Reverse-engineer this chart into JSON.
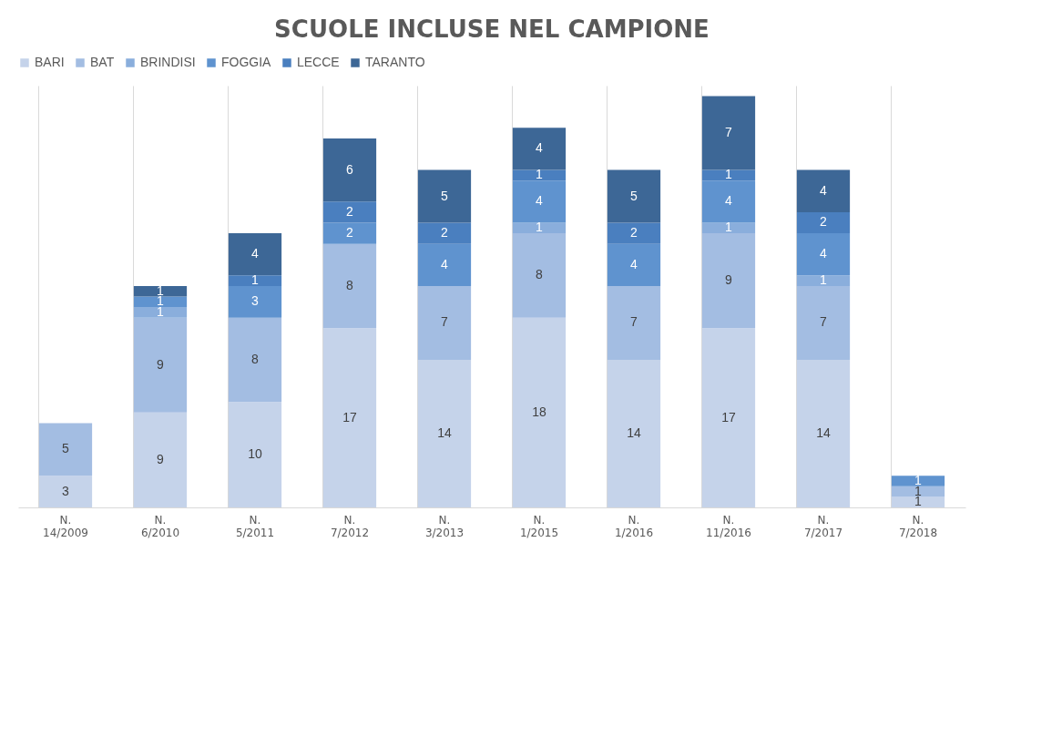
{
  "chart_data": {
    "type": "bar",
    "title": "SCUOLE INCLUSE NEL CAMPIONE",
    "categories": [
      "N. 14/2009",
      "N. 6/2010",
      "N. 5/2011",
      "N. 7/2012",
      "N. 3/2013",
      "N. 1/2015",
      "N. 1/2016",
      "N. 11/2016",
      "N. 7/2017",
      "N. 7/2018"
    ],
    "series": [
      {
        "name": "BARI",
        "color": "#c5d3ea",
        "values": [
          3,
          9,
          10,
          17,
          14,
          18,
          14,
          17,
          14,
          1
        ]
      },
      {
        "name": "BAT",
        "color": "#a3bde2",
        "values": [
          5,
          9,
          8,
          8,
          7,
          8,
          7,
          9,
          7,
          1
        ]
      },
      {
        "name": "BRINDISI",
        "color": "#8aaedc",
        "values": [
          null,
          1,
          null,
          null,
          null,
          1,
          null,
          1,
          1,
          null
        ]
      },
      {
        "name": "FOGGIA",
        "color": "#5f93cf",
        "values": [
          null,
          1,
          3,
          2,
          4,
          4,
          4,
          4,
          4,
          1
        ]
      },
      {
        "name": "LECCE",
        "color": "#4a7fbf",
        "values": [
          null,
          null,
          1,
          2,
          2,
          1,
          2,
          1,
          2,
          null
        ]
      },
      {
        "name": "TARANTO",
        "color": "#3d6796",
        "values": [
          null,
          1,
          4,
          6,
          5,
          4,
          5,
          7,
          4,
          null
        ]
      }
    ],
    "stacked": true,
    "data_labels": true,
    "legend": "top",
    "grid": "x"
  }
}
